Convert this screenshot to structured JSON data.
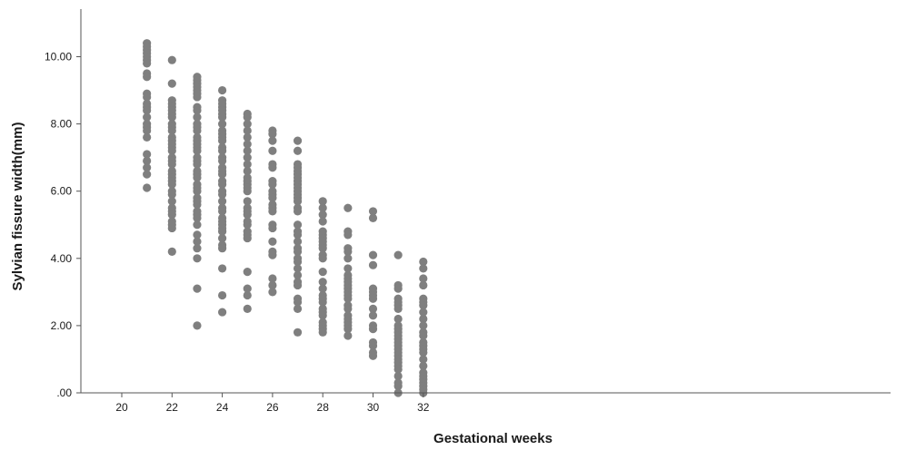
{
  "chart_data": {
    "type": "scatter",
    "title": "",
    "xlabel": "Gestational weeks",
    "ylabel": "Sylvian fissure width(mm)",
    "xlim": [
      19,
      33
    ],
    "ylim": [
      0,
      11
    ],
    "x_ticks": [
      20,
      22,
      24,
      26,
      28,
      30,
      32
    ],
    "x_tick_labels": [
      "20",
      "22",
      "24",
      "26",
      "28",
      "30",
      "32"
    ],
    "y_ticks": [
      0,
      2,
      4,
      6,
      8,
      10
    ],
    "y_tick_labels": [
      ".00",
      "2.00",
      "4.00",
      "6.00",
      "8.00",
      "10.00"
    ],
    "grid": false,
    "marker_color": "#7f7f7f",
    "series": [
      {
        "points": [
          [
            21,
            10.4
          ],
          [
            21,
            10.3
          ],
          [
            21,
            10.2
          ],
          [
            21,
            10.1
          ],
          [
            21,
            10.0
          ],
          [
            21,
            9.9
          ],
          [
            21,
            9.8
          ],
          [
            21,
            9.5
          ],
          [
            21,
            9.4
          ],
          [
            21,
            8.9
          ],
          [
            21,
            8.8
          ],
          [
            21,
            8.6
          ],
          [
            21,
            8.5
          ],
          [
            21,
            8.4
          ],
          [
            21,
            8.2
          ],
          [
            21,
            8.0
          ],
          [
            21,
            7.9
          ],
          [
            21,
            7.8
          ],
          [
            21,
            7.6
          ],
          [
            21,
            7.1
          ],
          [
            21,
            6.9
          ],
          [
            21,
            6.7
          ],
          [
            21,
            6.5
          ],
          [
            21,
            6.1
          ],
          [
            22,
            9.9
          ],
          [
            22,
            9.2
          ],
          [
            22,
            8.7
          ],
          [
            22,
            8.6
          ],
          [
            22,
            8.5
          ],
          [
            22,
            8.4
          ],
          [
            22,
            8.3
          ],
          [
            22,
            8.2
          ],
          [
            22,
            8.0
          ],
          [
            22,
            7.9
          ],
          [
            22,
            7.8
          ],
          [
            22,
            7.6
          ],
          [
            22,
            7.5
          ],
          [
            22,
            7.4
          ],
          [
            22,
            7.3
          ],
          [
            22,
            7.2
          ],
          [
            22,
            7.0
          ],
          [
            22,
            6.9
          ],
          [
            22,
            6.8
          ],
          [
            22,
            6.6
          ],
          [
            22,
            6.5
          ],
          [
            22,
            6.4
          ],
          [
            22,
            6.3
          ],
          [
            22,
            6.2
          ],
          [
            22,
            6.0
          ],
          [
            22,
            5.9
          ],
          [
            22,
            5.7
          ],
          [
            22,
            5.5
          ],
          [
            22,
            5.4
          ],
          [
            22,
            5.3
          ],
          [
            22,
            5.1
          ],
          [
            22,
            5.0
          ],
          [
            22,
            4.9
          ],
          [
            22,
            4.2
          ],
          [
            23,
            9.4
          ],
          [
            23,
            9.3
          ],
          [
            23,
            9.2
          ],
          [
            23,
            9.1
          ],
          [
            23,
            9.0
          ],
          [
            23,
            8.9
          ],
          [
            23,
            8.8
          ],
          [
            23,
            8.5
          ],
          [
            23,
            8.4
          ],
          [
            23,
            8.2
          ],
          [
            23,
            8.0
          ],
          [
            23,
            7.9
          ],
          [
            23,
            7.8
          ],
          [
            23,
            7.6
          ],
          [
            23,
            7.5
          ],
          [
            23,
            7.4
          ],
          [
            23,
            7.3
          ],
          [
            23,
            7.2
          ],
          [
            23,
            7.0
          ],
          [
            23,
            6.9
          ],
          [
            23,
            6.8
          ],
          [
            23,
            6.6
          ],
          [
            23,
            6.5
          ],
          [
            23,
            6.4
          ],
          [
            23,
            6.2
          ],
          [
            23,
            6.1
          ],
          [
            23,
            6.0
          ],
          [
            23,
            5.8
          ],
          [
            23,
            5.7
          ],
          [
            23,
            5.6
          ],
          [
            23,
            5.4
          ],
          [
            23,
            5.3
          ],
          [
            23,
            5.2
          ],
          [
            23,
            5.0
          ],
          [
            23,
            4.7
          ],
          [
            23,
            4.5
          ],
          [
            23,
            4.3
          ],
          [
            23,
            4.0
          ],
          [
            23,
            3.1
          ],
          [
            23,
            2.0
          ],
          [
            24,
            9.0
          ],
          [
            24,
            8.7
          ],
          [
            24,
            8.6
          ],
          [
            24,
            8.5
          ],
          [
            24,
            8.4
          ],
          [
            24,
            8.3
          ],
          [
            24,
            8.2
          ],
          [
            24,
            8.0
          ],
          [
            24,
            7.8
          ],
          [
            24,
            7.7
          ],
          [
            24,
            7.6
          ],
          [
            24,
            7.5
          ],
          [
            24,
            7.3
          ],
          [
            24,
            7.2
          ],
          [
            24,
            7.0
          ],
          [
            24,
            6.9
          ],
          [
            24,
            6.7
          ],
          [
            24,
            6.6
          ],
          [
            24,
            6.5
          ],
          [
            24,
            6.3
          ],
          [
            24,
            6.2
          ],
          [
            24,
            6.0
          ],
          [
            24,
            5.9
          ],
          [
            24,
            5.7
          ],
          [
            24,
            5.5
          ],
          [
            24,
            5.4
          ],
          [
            24,
            5.2
          ],
          [
            24,
            5.1
          ],
          [
            24,
            5.0
          ],
          [
            24,
            4.9
          ],
          [
            24,
            4.8
          ],
          [
            24,
            4.6
          ],
          [
            24,
            4.4
          ],
          [
            24,
            4.3
          ],
          [
            24,
            3.7
          ],
          [
            24,
            2.9
          ],
          [
            24,
            2.4
          ],
          [
            25,
            8.3
          ],
          [
            25,
            8.2
          ],
          [
            25,
            8.0
          ],
          [
            25,
            7.8
          ],
          [
            25,
            7.6
          ],
          [
            25,
            7.4
          ],
          [
            25,
            7.2
          ],
          [
            25,
            7.0
          ],
          [
            25,
            6.8
          ],
          [
            25,
            6.6
          ],
          [
            25,
            6.4
          ],
          [
            25,
            6.3
          ],
          [
            25,
            6.2
          ],
          [
            25,
            6.1
          ],
          [
            25,
            6.0
          ],
          [
            25,
            5.7
          ],
          [
            25,
            5.5
          ],
          [
            25,
            5.4
          ],
          [
            25,
            5.3
          ],
          [
            25,
            5.1
          ],
          [
            25,
            5.0
          ],
          [
            25,
            4.8
          ],
          [
            25,
            4.7
          ],
          [
            25,
            4.6
          ],
          [
            25,
            3.6
          ],
          [
            25,
            3.1
          ],
          [
            25,
            2.9
          ],
          [
            25,
            2.5
          ],
          [
            26,
            7.8
          ],
          [
            26,
            7.7
          ],
          [
            26,
            7.5
          ],
          [
            26,
            7.2
          ],
          [
            26,
            6.8
          ],
          [
            26,
            6.7
          ],
          [
            26,
            6.3
          ],
          [
            26,
            6.2
          ],
          [
            26,
            6.0
          ],
          [
            26,
            5.9
          ],
          [
            26,
            5.8
          ],
          [
            26,
            5.6
          ],
          [
            26,
            5.5
          ],
          [
            26,
            5.4
          ],
          [
            26,
            5.0
          ],
          [
            26,
            4.9
          ],
          [
            26,
            4.5
          ],
          [
            26,
            4.2
          ],
          [
            26,
            4.1
          ],
          [
            26,
            3.4
          ],
          [
            26,
            3.2
          ],
          [
            26,
            3.0
          ],
          [
            27,
            7.5
          ],
          [
            27,
            7.2
          ],
          [
            27,
            6.8
          ],
          [
            27,
            6.7
          ],
          [
            27,
            6.6
          ],
          [
            27,
            6.5
          ],
          [
            27,
            6.4
          ],
          [
            27,
            6.3
          ],
          [
            27,
            6.2
          ],
          [
            27,
            6.1
          ],
          [
            27,
            6.0
          ],
          [
            27,
            5.9
          ],
          [
            27,
            5.8
          ],
          [
            27,
            5.7
          ],
          [
            27,
            5.5
          ],
          [
            27,
            5.4
          ],
          [
            27,
            5.0
          ],
          [
            27,
            4.8
          ],
          [
            27,
            4.7
          ],
          [
            27,
            4.5
          ],
          [
            27,
            4.3
          ],
          [
            27,
            4.2
          ],
          [
            27,
            4.0
          ],
          [
            27,
            3.9
          ],
          [
            27,
            3.7
          ],
          [
            27,
            3.5
          ],
          [
            27,
            3.3
          ],
          [
            27,
            3.2
          ],
          [
            27,
            2.8
          ],
          [
            27,
            2.7
          ],
          [
            27,
            2.5
          ],
          [
            27,
            1.8
          ],
          [
            28,
            5.7
          ],
          [
            28,
            5.5
          ],
          [
            28,
            5.3
          ],
          [
            28,
            5.1
          ],
          [
            28,
            4.8
          ],
          [
            28,
            4.7
          ],
          [
            28,
            4.6
          ],
          [
            28,
            4.5
          ],
          [
            28,
            4.4
          ],
          [
            28,
            4.3
          ],
          [
            28,
            4.1
          ],
          [
            28,
            4.0
          ],
          [
            28,
            3.6
          ],
          [
            28,
            3.3
          ],
          [
            28,
            3.1
          ],
          [
            28,
            2.9
          ],
          [
            28,
            2.8
          ],
          [
            28,
            2.7
          ],
          [
            28,
            2.5
          ],
          [
            28,
            2.4
          ],
          [
            28,
            2.3
          ],
          [
            28,
            2.1
          ],
          [
            28,
            2.0
          ],
          [
            28,
            1.9
          ],
          [
            28,
            1.8
          ],
          [
            29,
            5.5
          ],
          [
            29,
            4.8
          ],
          [
            29,
            4.7
          ],
          [
            29,
            4.3
          ],
          [
            29,
            4.2
          ],
          [
            29,
            4.0
          ],
          [
            29,
            3.7
          ],
          [
            29,
            3.5
          ],
          [
            29,
            3.4
          ],
          [
            29,
            3.3
          ],
          [
            29,
            3.2
          ],
          [
            29,
            3.1
          ],
          [
            29,
            3.0
          ],
          [
            29,
            2.9
          ],
          [
            29,
            2.8
          ],
          [
            29,
            2.6
          ],
          [
            29,
            2.5
          ],
          [
            29,
            2.3
          ],
          [
            29,
            2.2
          ],
          [
            29,
            2.1
          ],
          [
            29,
            2.0
          ],
          [
            29,
            1.9
          ],
          [
            29,
            1.7
          ],
          [
            30,
            5.4
          ],
          [
            30,
            5.2
          ],
          [
            30,
            4.1
          ],
          [
            30,
            3.8
          ],
          [
            30,
            3.1
          ],
          [
            30,
            3.0
          ],
          [
            30,
            2.9
          ],
          [
            30,
            2.8
          ],
          [
            30,
            2.5
          ],
          [
            30,
            2.3
          ],
          [
            30,
            2.0
          ],
          [
            30,
            1.9
          ],
          [
            30,
            1.5
          ],
          [
            30,
            1.4
          ],
          [
            30,
            1.2
          ],
          [
            30,
            1.1
          ],
          [
            31,
            4.1
          ],
          [
            31,
            3.2
          ],
          [
            31,
            3.1
          ],
          [
            31,
            2.8
          ],
          [
            31,
            2.7
          ],
          [
            31,
            2.6
          ],
          [
            31,
            2.5
          ],
          [
            31,
            2.2
          ],
          [
            31,
            2.0
          ],
          [
            31,
            1.9
          ],
          [
            31,
            1.8
          ],
          [
            31,
            1.7
          ],
          [
            31,
            1.6
          ],
          [
            31,
            1.5
          ],
          [
            31,
            1.4
          ],
          [
            31,
            1.3
          ],
          [
            31,
            1.2
          ],
          [
            31,
            1.1
          ],
          [
            31,
            1.0
          ],
          [
            31,
            0.9
          ],
          [
            31,
            0.8
          ],
          [
            31,
            0.7
          ],
          [
            31,
            0.5
          ],
          [
            31,
            0.3
          ],
          [
            31,
            0.2
          ],
          [
            31,
            0.0
          ],
          [
            32,
            3.9
          ],
          [
            32,
            3.7
          ],
          [
            32,
            3.4
          ],
          [
            32,
            3.2
          ],
          [
            32,
            2.8
          ],
          [
            32,
            2.7
          ],
          [
            32,
            2.6
          ],
          [
            32,
            2.4
          ],
          [
            32,
            2.2
          ],
          [
            32,
            2.0
          ],
          [
            32,
            1.8
          ],
          [
            32,
            1.7
          ],
          [
            32,
            1.5
          ],
          [
            32,
            1.4
          ],
          [
            32,
            1.3
          ],
          [
            32,
            1.2
          ],
          [
            32,
            1.0
          ],
          [
            32,
            0.8
          ],
          [
            32,
            0.6
          ],
          [
            32,
            0.5
          ],
          [
            32,
            0.4
          ],
          [
            32,
            0.3
          ],
          [
            32,
            0.2
          ],
          [
            32,
            0.1
          ],
          [
            32,
            0.0
          ]
        ]
      }
    ]
  }
}
